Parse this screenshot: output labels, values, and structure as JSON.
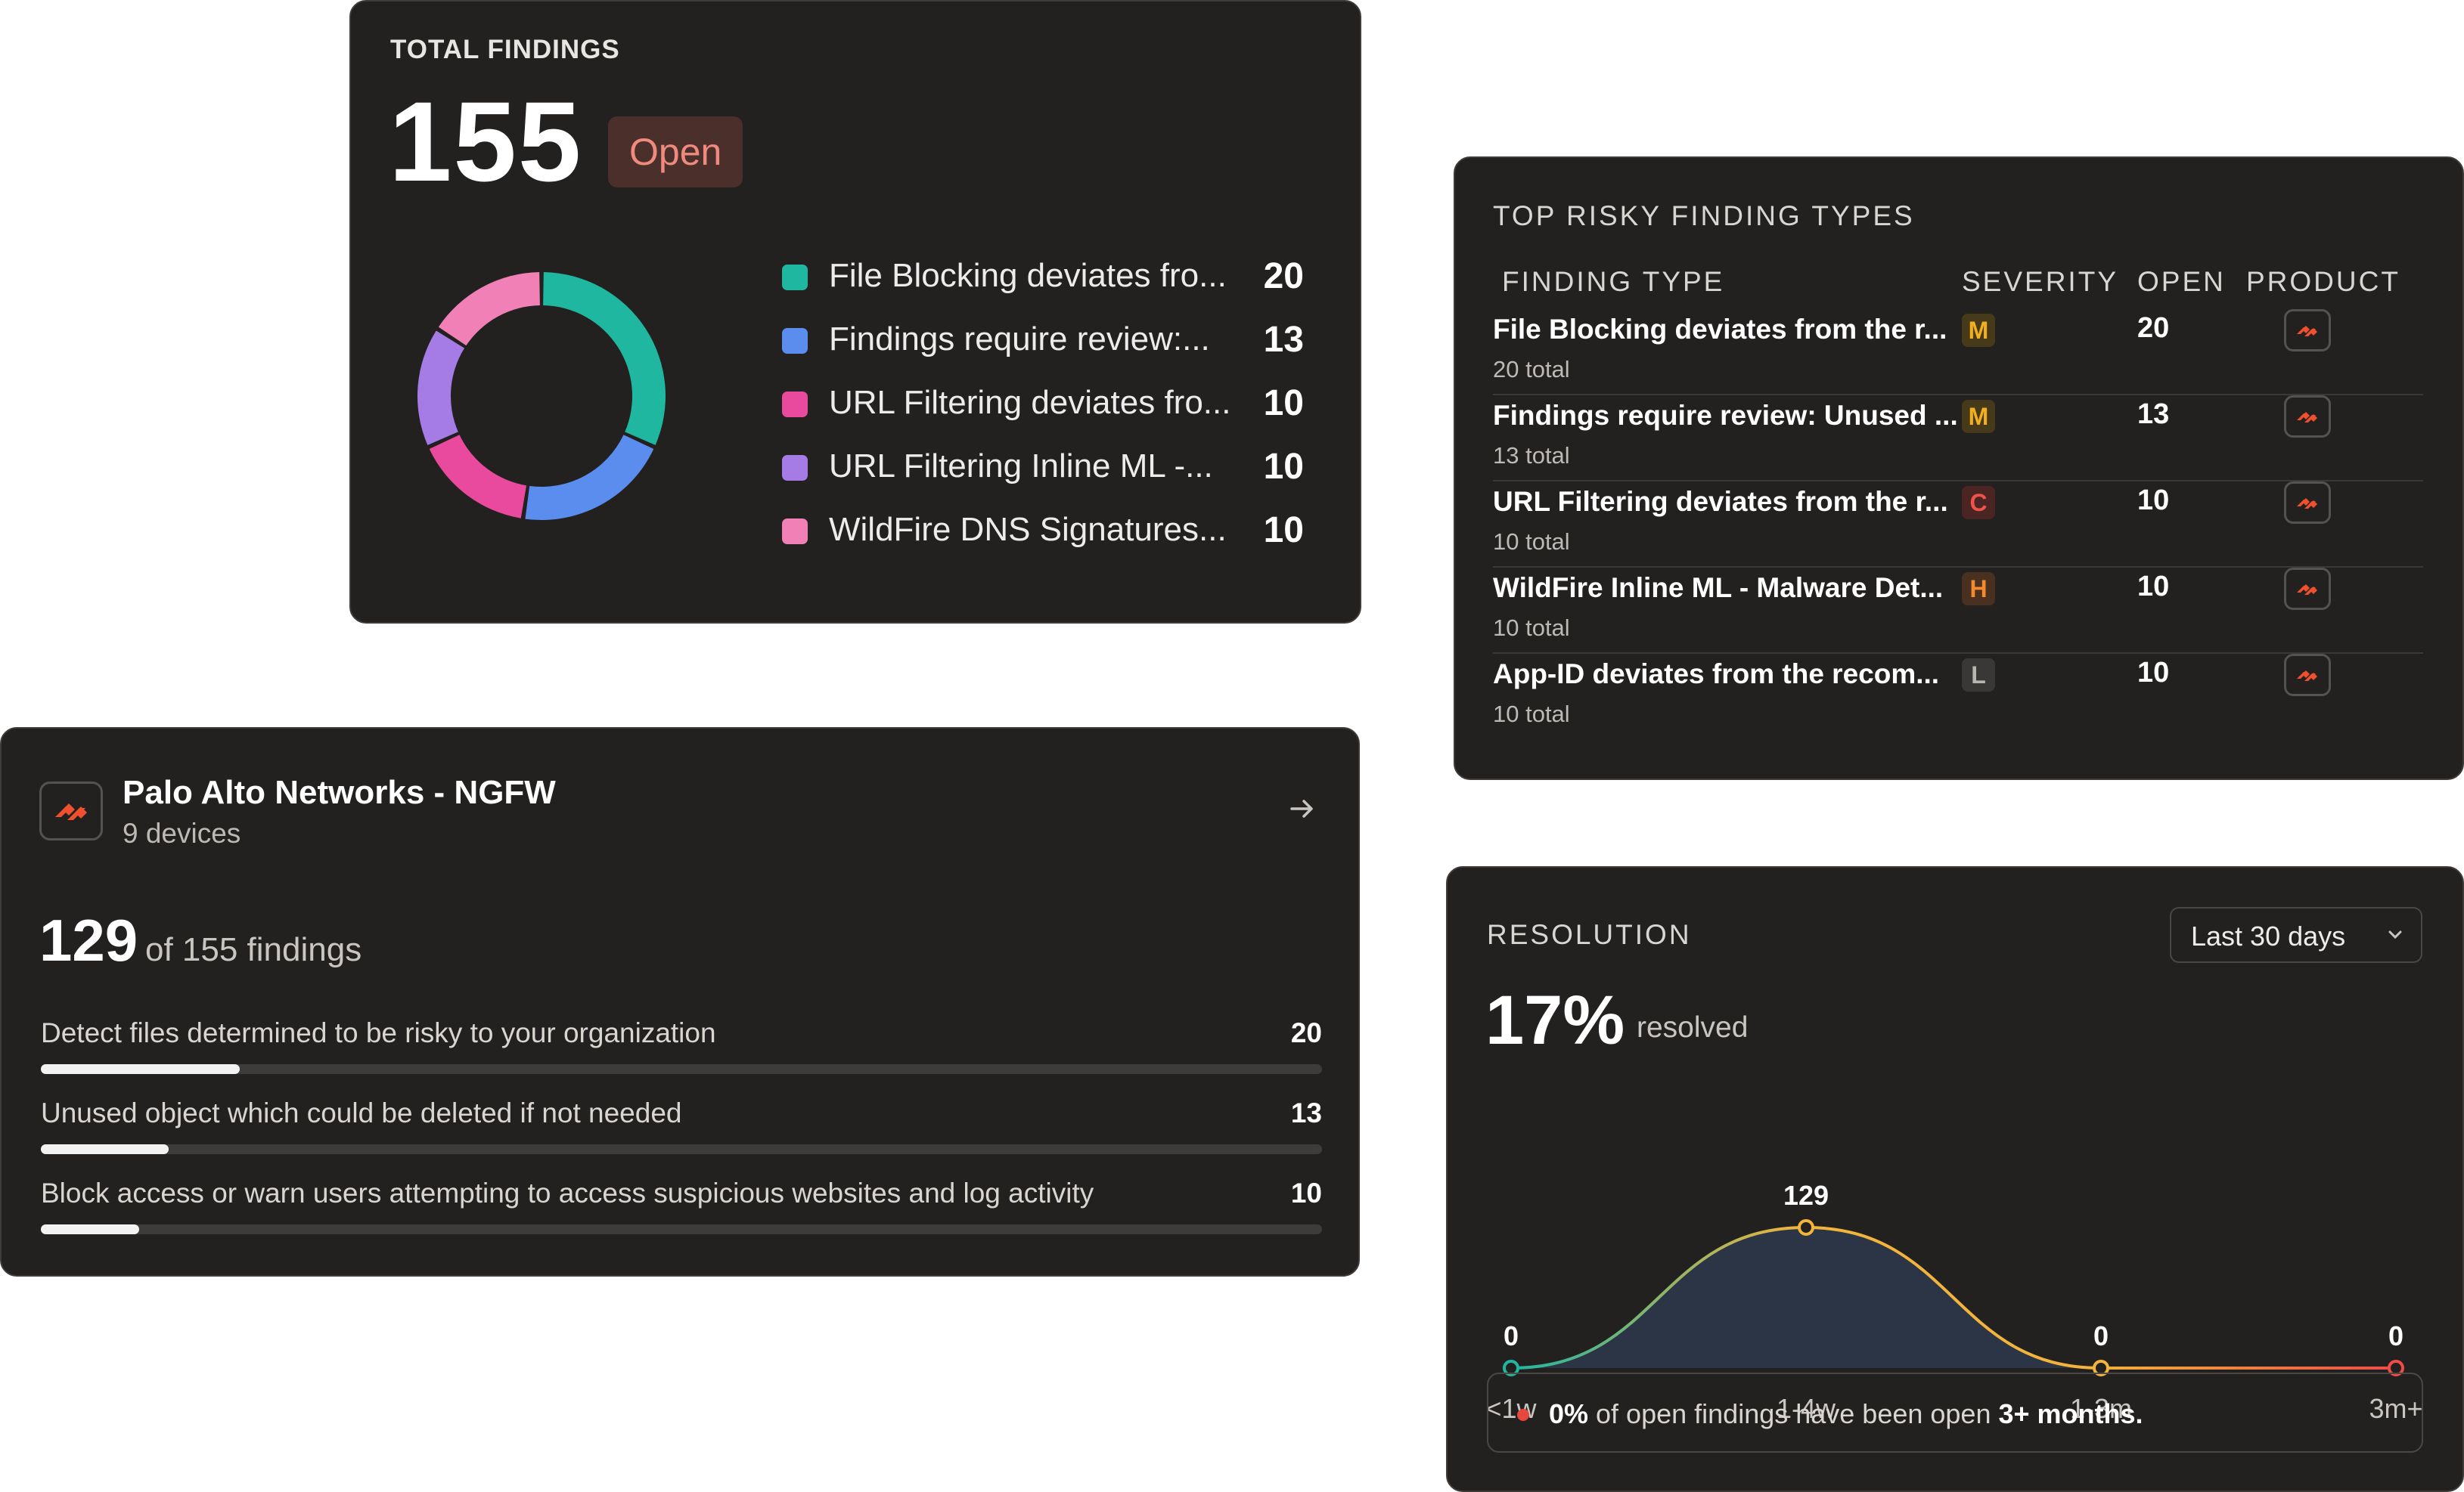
{
  "total_findings": {
    "title": "TOTAL FINDINGS",
    "count": "155",
    "badge": "Open",
    "legend": [
      {
        "label": "File Blocking deviates fro...",
        "value": "20",
        "color": "#1fb7a0"
      },
      {
        "label": "Findings require review:...",
        "value": "13",
        "color": "#5b8def"
      },
      {
        "label": "URL Filtering deviates fro...",
        "value": "10",
        "color": "#e94a9e"
      },
      {
        "label": "URL Filtering Inline ML -...",
        "value": "10",
        "color": "#a57be5"
      },
      {
        "label": "WildFire DNS Signatures...",
        "value": "10",
        "color": "#f080b6"
      }
    ]
  },
  "top_risky": {
    "title": "TOP RISKY FINDING TYPES",
    "headers": {
      "type": "FINDING TYPE",
      "severity": "SEVERITY",
      "open": "OPEN",
      "product": "PRODUCT"
    },
    "rows": [
      {
        "name": "File Blocking deviates from the r...",
        "total": "20 total",
        "severity": "M",
        "sev_color": "#f2b01e",
        "sev_bg": "#463a1a",
        "open": "20"
      },
      {
        "name": "Findings require review: Unused ...",
        "total": "13 total",
        "severity": "M",
        "sev_color": "#f2b01e",
        "sev_bg": "#463a1a",
        "open": "13"
      },
      {
        "name": "URL Filtering deviates from the r...",
        "total": "10 total",
        "severity": "C",
        "sev_color": "#f0524a",
        "sev_bg": "#4a2523",
        "open": "10"
      },
      {
        "name": "WildFire Inline ML - Malware Det...",
        "total": "10 total",
        "severity": "H",
        "sev_color": "#f38a2c",
        "sev_bg": "#4a3020",
        "open": "10"
      },
      {
        "name": "App-ID deviates from the recom...",
        "total": "10 total",
        "severity": "L",
        "sev_color": "#b9b6b2",
        "sev_bg": "#3a3836",
        "open": "10"
      }
    ]
  },
  "product": {
    "name": "Palo Alto Networks - NGFW",
    "devices": "9 devices",
    "count": "129",
    "count_sub": "of 155 findings",
    "items": [
      {
        "label": "Detect files determined to be risky to your organization",
        "value": "20",
        "fraction": 0.155
      },
      {
        "label": "Unused object which could be deleted if not needed",
        "value": "13",
        "fraction": 0.1
      },
      {
        "label": "Block access or warn users attempting to access suspicious websites and log activity",
        "value": "10",
        "fraction": 0.077
      }
    ]
  },
  "resolution": {
    "title": "RESOLUTION",
    "range": "Last 30 days",
    "percent": "17%",
    "percent_sub": "resolved",
    "note_pct": "0%",
    "note_mid": " of open findings have been open ",
    "note_end": "3+ months."
  },
  "chart_data": {
    "type": "area",
    "categories": [
      "<1w",
      "1-4w",
      "1-3m",
      "3m+"
    ],
    "values": [
      0,
      129,
      0,
      0
    ],
    "value_labels": [
      "0",
      "129",
      "0",
      "0"
    ],
    "colors": {
      "start": "#1fb7a0",
      "mid": "#f2b43a",
      "end": "#ef4b47"
    }
  }
}
